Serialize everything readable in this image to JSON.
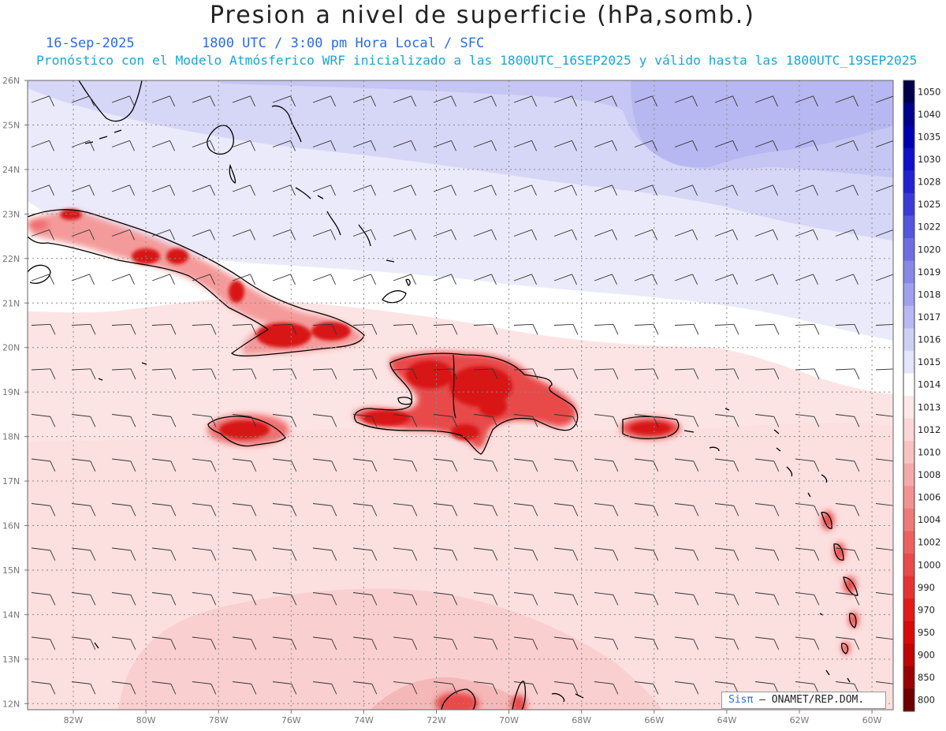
{
  "header": {
    "title": "Presion a nivel de superficie (hPa,somb.)",
    "date": "16-Sep-2025",
    "time_line": "1800 UTC / 3:00 pm Hora Local / SFC",
    "description": "Pronóstico con el Modelo Atmósferico WRF inicializado a las 1800UTC_16SEP2025 y válido hasta las  1800UTC_19SEP2025"
  },
  "map": {
    "lat_labels": [
      "26N",
      "25N",
      "24N",
      "23N",
      "22N",
      "21N",
      "20N",
      "19N",
      "18N",
      "17N",
      "16N",
      "15N",
      "14N",
      "13N",
      "12N"
    ],
    "lon_labels": [
      "82W",
      "80W",
      "78W",
      "76W",
      "74W",
      "72W",
      "70W",
      "68W",
      "66W",
      "64W",
      "62W",
      "60W"
    ]
  },
  "colorbar": {
    "levels": [
      "1050",
      "1040",
      "1035",
      "1030",
      "1028",
      "1025",
      "1022",
      "1020",
      "1019",
      "1018",
      "1017",
      "1016",
      "1015",
      "1014",
      "1013",
      "1012",
      "1010",
      "1008",
      "1006",
      "1004",
      "1002",
      "1000",
      "990",
      "970",
      "950",
      "900",
      "850",
      "800"
    ],
    "colors": [
      "#00004a",
      "#00008b",
      "#0000b0",
      "#1010c8",
      "#2222d0",
      "#3a3ad8",
      "#5555dd",
      "#6e6ee2",
      "#8888e8",
      "#a0a0ee",
      "#b8b8f2",
      "#cfcff6",
      "#e4e4fa",
      "#ffffff",
      "#fde8e8",
      "#fbd6d6",
      "#f8c2c2",
      "#f5aaaa",
      "#f29292",
      "#ef7a7a",
      "#ec6262",
      "#e94a4a",
      "#e63232",
      "#e21a1a",
      "#d80a0a",
      "#bf0505",
      "#9a0303",
      "#6e0000"
    ]
  },
  "credit": {
    "brand": "Sisπ",
    "text": "– ONAMET/REP.DOM."
  }
}
